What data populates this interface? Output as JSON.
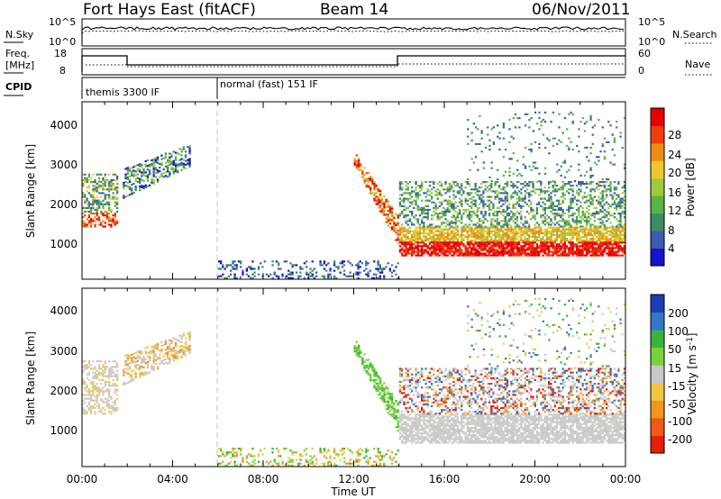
{
  "header": {
    "title": "Fort Hays East (fitACF)",
    "beam": "Beam 14",
    "date": "06/Nov/2011"
  },
  "summary_panels": {
    "noise": {
      "left_label": "N.Sky",
      "right_label": "N.Search",
      "left_ticks": [
        "10^5",
        "10^0"
      ],
      "right_ticks": [
        "10^5",
        "10^0"
      ]
    },
    "freq": {
      "left_label_top": "Freq.",
      "left_label_bottom": "[MHz]",
      "right_label": "Nave",
      "left_ticks": [
        "18",
        "8"
      ],
      "right_ticks": [
        "60",
        "0"
      ]
    },
    "cpid": {
      "label": "CPID",
      "segments": [
        {
          "text": "themis 3300 IF",
          "start_hour": 0
        },
        {
          "text": "normal (fast) 151 IF",
          "start_hour": 6
        }
      ]
    }
  },
  "chart_data": [
    {
      "type": "heatmap",
      "name": "Power",
      "ylabel": "Slant Range [km]",
      "xlabel": "Time UT",
      "xlim_hours": [
        0,
        24
      ],
      "ylim": [
        200,
        4500
      ],
      "yticks": [
        "1000",
        "2000",
        "3000",
        "4000"
      ],
      "colorbar": {
        "label": "Power [dB]",
        "ticks": [
          "4",
          "8",
          "12",
          "16",
          "20",
          "24",
          "28"
        ],
        "colors": [
          "#1414c8",
          "#3c5ab4",
          "#3c8c64",
          "#5ab446",
          "#a0c83c",
          "#f0c828",
          "#f08c14",
          "#f03c0a",
          "#e60000"
        ]
      }
    },
    {
      "type": "heatmap",
      "name": "Velocity",
      "ylabel": "Slant Range [km]",
      "xlabel": "Time UT",
      "xlim_hours": [
        0,
        24
      ],
      "ylim": [
        200,
        4500
      ],
      "yticks": [
        "1000",
        "2000",
        "3000",
        "4000"
      ],
      "colorbar": {
        "label": "Velocity [m s-1]",
        "ticks": [
          "200",
          "100",
          "50",
          "15",
          "-15",
          "-50",
          "-100",
          "-200"
        ],
        "colors": [
          "#1e3cb4",
          "#3278c8",
          "#3cb43c",
          "#78d23c",
          "#c8c8c8",
          "#f0c83c",
          "#f0961e",
          "#f05a14",
          "#e61e0a"
        ]
      }
    }
  ],
  "xaxis": {
    "label": "Time UT",
    "ticks": [
      "00:00",
      "04:00",
      "08:00",
      "12:00",
      "16:00",
      "20:00",
      "00:00"
    ]
  }
}
